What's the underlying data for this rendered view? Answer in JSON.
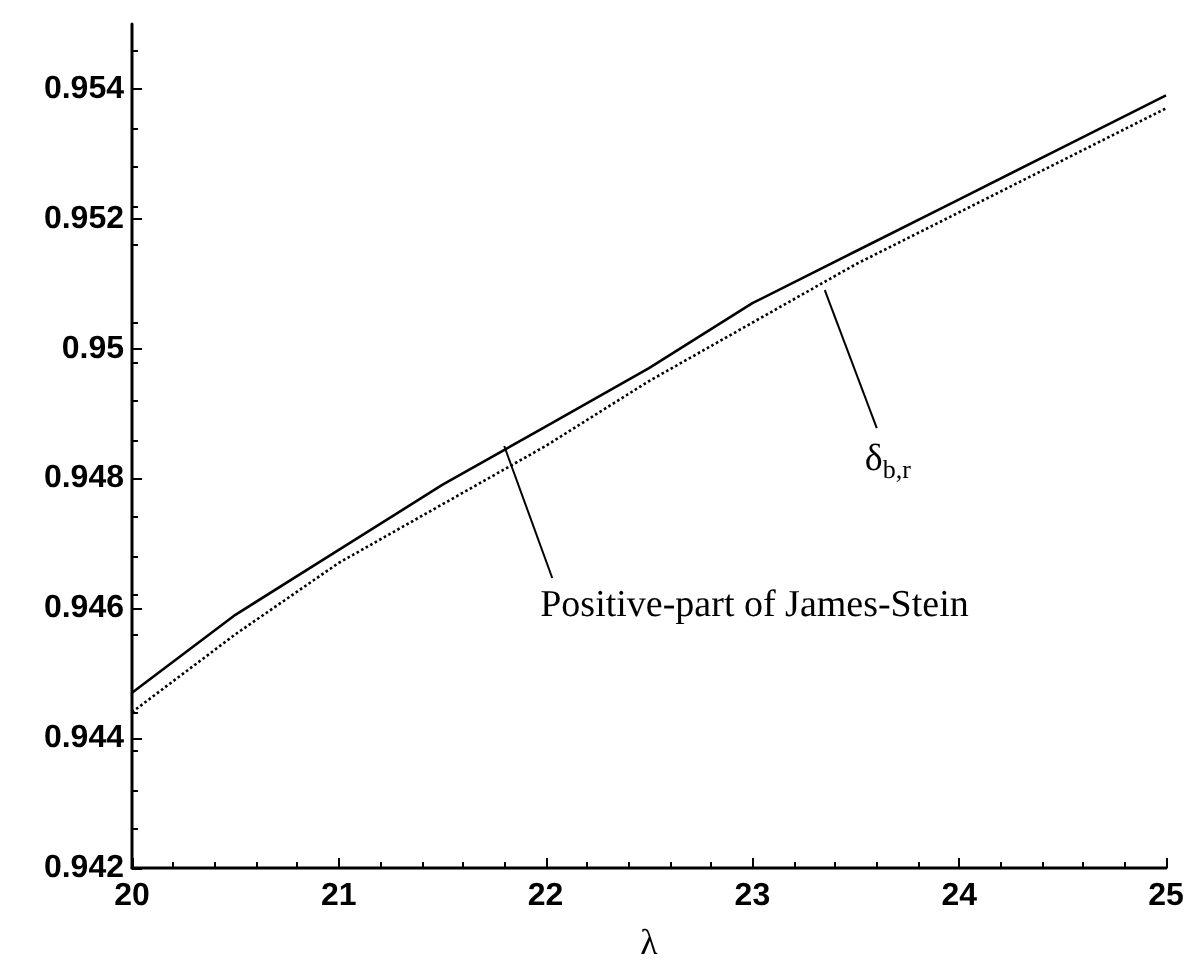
{
  "chart_data": {
    "type": "line",
    "xlabel": "λ",
    "x": [
      20,
      20.5,
      21,
      21.5,
      22,
      22.5,
      23,
      23.5,
      24,
      24.5,
      25
    ],
    "series": [
      {
        "color": "#000000",
        "line_style": "solid",
        "values": [
          0.9447,
          0.9459,
          0.9469,
          0.9479,
          0.9488,
          0.9497,
          0.9507,
          0.9515,
          0.9523,
          0.9531,
          0.9539
        ]
      },
      {
        "color": "#000000",
        "line_style": "dotted",
        "values": [
          0.9444,
          0.9456,
          0.9467,
          0.9476,
          0.9485,
          0.9495,
          0.9504,
          0.9513,
          0.9521,
          0.9529,
          0.9537
        ]
      }
    ],
    "annotations": [
      {
        "text": "Positive-part of James-Stein",
        "x": 21.8,
        "y": 0.9485
      },
      {
        "text": "δ$_{b,r}$",
        "x": 23.35,
        "y": 0.9509
      }
    ],
    "xlim": [
      20,
      25
    ],
    "xticks": [
      20,
      21,
      22,
      23,
      24,
      25
    ],
    "ylim": [
      0.942,
      0.955
    ],
    "yticks": [
      0.942,
      0.944,
      0.946,
      0.948,
      0.95,
      0.952,
      0.954
    ],
    "grid": false,
    "marker": "none"
  }
}
